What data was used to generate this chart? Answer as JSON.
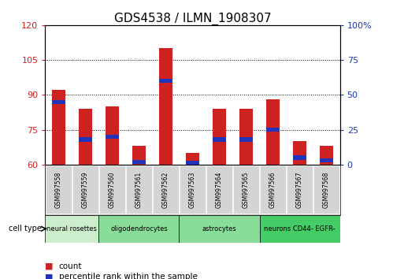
{
  "title": "GDS4538 / ILMN_1908307",
  "samples": [
    "GSM997558",
    "GSM997559",
    "GSM997560",
    "GSM997561",
    "GSM997562",
    "GSM997563",
    "GSM997564",
    "GSM997565",
    "GSM997566",
    "GSM997567",
    "GSM997568"
  ],
  "count": [
    92,
    84,
    85,
    68,
    110,
    65,
    84,
    84,
    88,
    70,
    68
  ],
  "percentile": [
    45,
    18,
    20,
    2,
    60,
    1,
    18,
    18,
    25,
    5,
    3
  ],
  "ylim_left": [
    60,
    120
  ],
  "ylim_right": [
    0,
    100
  ],
  "yticks_left": [
    60,
    75,
    90,
    105,
    120
  ],
  "yticks_right": [
    0,
    25,
    50,
    75,
    100
  ],
  "yticklabels_right": [
    "0",
    "25",
    "50",
    "75",
    "100%"
  ],
  "bar_color_red": "#cc2222",
  "bar_color_blue": "#2233bb",
  "cell_types": [
    {
      "label": "neural rosettes",
      "start": 0,
      "end": 2,
      "color": "#cceecc"
    },
    {
      "label": "oligodendrocytes",
      "start": 2,
      "end": 5,
      "color": "#88dd99"
    },
    {
      "label": "astrocytes",
      "start": 5,
      "end": 8,
      "color": "#88dd99"
    },
    {
      "label": "neurons CD44- EGFR-",
      "start": 8,
      "end": 11,
      "color": "#44cc66"
    }
  ],
  "cell_type_label": "cell type",
  "legend_count": "count",
  "legend_percentile": "percentile rank within the sample",
  "background_color": "#ffffff",
  "bar_width": 0.5,
  "title_fontsize": 11,
  "gridline_ticks": [
    75,
    90,
    105
  ]
}
